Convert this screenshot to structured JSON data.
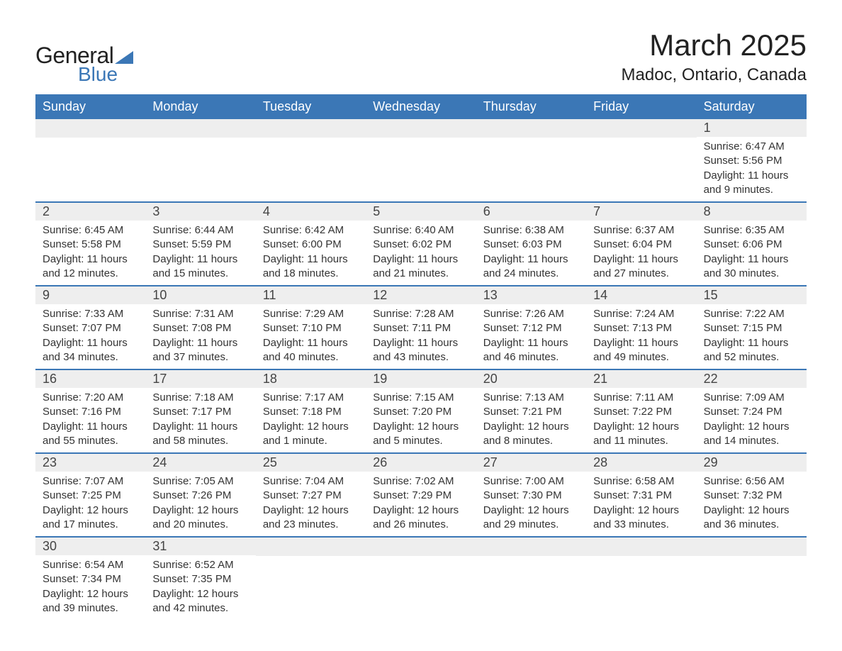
{
  "logo": {
    "text_general": "General",
    "text_blue": "Blue"
  },
  "title": {
    "month": "March 2025",
    "location": "Madoc, Ontario, Canada"
  },
  "colors": {
    "header_bg": "#3b77b6",
    "header_text": "#ffffff",
    "day_number_bg": "#eeeeee",
    "text": "#333333",
    "border": "#3b77b6"
  },
  "weekdays": [
    "Sunday",
    "Monday",
    "Tuesday",
    "Wednesday",
    "Thursday",
    "Friday",
    "Saturday"
  ],
  "weeks": [
    [
      {
        "day": "",
        "sunrise": "",
        "sunset": "",
        "daylight": ""
      },
      {
        "day": "",
        "sunrise": "",
        "sunset": "",
        "daylight": ""
      },
      {
        "day": "",
        "sunrise": "",
        "sunset": "",
        "daylight": ""
      },
      {
        "day": "",
        "sunrise": "",
        "sunset": "",
        "daylight": ""
      },
      {
        "day": "",
        "sunrise": "",
        "sunset": "",
        "daylight": ""
      },
      {
        "day": "",
        "sunrise": "",
        "sunset": "",
        "daylight": ""
      },
      {
        "day": "1",
        "sunrise": "Sunrise: 6:47 AM",
        "sunset": "Sunset: 5:56 PM",
        "daylight": "Daylight: 11 hours and 9 minutes."
      }
    ],
    [
      {
        "day": "2",
        "sunrise": "Sunrise: 6:45 AM",
        "sunset": "Sunset: 5:58 PM",
        "daylight": "Daylight: 11 hours and 12 minutes."
      },
      {
        "day": "3",
        "sunrise": "Sunrise: 6:44 AM",
        "sunset": "Sunset: 5:59 PM",
        "daylight": "Daylight: 11 hours and 15 minutes."
      },
      {
        "day": "4",
        "sunrise": "Sunrise: 6:42 AM",
        "sunset": "Sunset: 6:00 PM",
        "daylight": "Daylight: 11 hours and 18 minutes."
      },
      {
        "day": "5",
        "sunrise": "Sunrise: 6:40 AM",
        "sunset": "Sunset: 6:02 PM",
        "daylight": "Daylight: 11 hours and 21 minutes."
      },
      {
        "day": "6",
        "sunrise": "Sunrise: 6:38 AM",
        "sunset": "Sunset: 6:03 PM",
        "daylight": "Daylight: 11 hours and 24 minutes."
      },
      {
        "day": "7",
        "sunrise": "Sunrise: 6:37 AM",
        "sunset": "Sunset: 6:04 PM",
        "daylight": "Daylight: 11 hours and 27 minutes."
      },
      {
        "day": "8",
        "sunrise": "Sunrise: 6:35 AM",
        "sunset": "Sunset: 6:06 PM",
        "daylight": "Daylight: 11 hours and 30 minutes."
      }
    ],
    [
      {
        "day": "9",
        "sunrise": "Sunrise: 7:33 AM",
        "sunset": "Sunset: 7:07 PM",
        "daylight": "Daylight: 11 hours and 34 minutes."
      },
      {
        "day": "10",
        "sunrise": "Sunrise: 7:31 AM",
        "sunset": "Sunset: 7:08 PM",
        "daylight": "Daylight: 11 hours and 37 minutes."
      },
      {
        "day": "11",
        "sunrise": "Sunrise: 7:29 AM",
        "sunset": "Sunset: 7:10 PM",
        "daylight": "Daylight: 11 hours and 40 minutes."
      },
      {
        "day": "12",
        "sunrise": "Sunrise: 7:28 AM",
        "sunset": "Sunset: 7:11 PM",
        "daylight": "Daylight: 11 hours and 43 minutes."
      },
      {
        "day": "13",
        "sunrise": "Sunrise: 7:26 AM",
        "sunset": "Sunset: 7:12 PM",
        "daylight": "Daylight: 11 hours and 46 minutes."
      },
      {
        "day": "14",
        "sunrise": "Sunrise: 7:24 AM",
        "sunset": "Sunset: 7:13 PM",
        "daylight": "Daylight: 11 hours and 49 minutes."
      },
      {
        "day": "15",
        "sunrise": "Sunrise: 7:22 AM",
        "sunset": "Sunset: 7:15 PM",
        "daylight": "Daylight: 11 hours and 52 minutes."
      }
    ],
    [
      {
        "day": "16",
        "sunrise": "Sunrise: 7:20 AM",
        "sunset": "Sunset: 7:16 PM",
        "daylight": "Daylight: 11 hours and 55 minutes."
      },
      {
        "day": "17",
        "sunrise": "Sunrise: 7:18 AM",
        "sunset": "Sunset: 7:17 PM",
        "daylight": "Daylight: 11 hours and 58 minutes."
      },
      {
        "day": "18",
        "sunrise": "Sunrise: 7:17 AM",
        "sunset": "Sunset: 7:18 PM",
        "daylight": "Daylight: 12 hours and 1 minute."
      },
      {
        "day": "19",
        "sunrise": "Sunrise: 7:15 AM",
        "sunset": "Sunset: 7:20 PM",
        "daylight": "Daylight: 12 hours and 5 minutes."
      },
      {
        "day": "20",
        "sunrise": "Sunrise: 7:13 AM",
        "sunset": "Sunset: 7:21 PM",
        "daylight": "Daylight: 12 hours and 8 minutes."
      },
      {
        "day": "21",
        "sunrise": "Sunrise: 7:11 AM",
        "sunset": "Sunset: 7:22 PM",
        "daylight": "Daylight: 12 hours and 11 minutes."
      },
      {
        "day": "22",
        "sunrise": "Sunrise: 7:09 AM",
        "sunset": "Sunset: 7:24 PM",
        "daylight": "Daylight: 12 hours and 14 minutes."
      }
    ],
    [
      {
        "day": "23",
        "sunrise": "Sunrise: 7:07 AM",
        "sunset": "Sunset: 7:25 PM",
        "daylight": "Daylight: 12 hours and 17 minutes."
      },
      {
        "day": "24",
        "sunrise": "Sunrise: 7:05 AM",
        "sunset": "Sunset: 7:26 PM",
        "daylight": "Daylight: 12 hours and 20 minutes."
      },
      {
        "day": "25",
        "sunrise": "Sunrise: 7:04 AM",
        "sunset": "Sunset: 7:27 PM",
        "daylight": "Daylight: 12 hours and 23 minutes."
      },
      {
        "day": "26",
        "sunrise": "Sunrise: 7:02 AM",
        "sunset": "Sunset: 7:29 PM",
        "daylight": "Daylight: 12 hours and 26 minutes."
      },
      {
        "day": "27",
        "sunrise": "Sunrise: 7:00 AM",
        "sunset": "Sunset: 7:30 PM",
        "daylight": "Daylight: 12 hours and 29 minutes."
      },
      {
        "day": "28",
        "sunrise": "Sunrise: 6:58 AM",
        "sunset": "Sunset: 7:31 PM",
        "daylight": "Daylight: 12 hours and 33 minutes."
      },
      {
        "day": "29",
        "sunrise": "Sunrise: 6:56 AM",
        "sunset": "Sunset: 7:32 PM",
        "daylight": "Daylight: 12 hours and 36 minutes."
      }
    ],
    [
      {
        "day": "30",
        "sunrise": "Sunrise: 6:54 AM",
        "sunset": "Sunset: 7:34 PM",
        "daylight": "Daylight: 12 hours and 39 minutes."
      },
      {
        "day": "31",
        "sunrise": "Sunrise: 6:52 AM",
        "sunset": "Sunset: 7:35 PM",
        "daylight": "Daylight: 12 hours and 42 minutes."
      },
      {
        "day": "",
        "sunrise": "",
        "sunset": "",
        "daylight": ""
      },
      {
        "day": "",
        "sunrise": "",
        "sunset": "",
        "daylight": ""
      },
      {
        "day": "",
        "sunrise": "",
        "sunset": "",
        "daylight": ""
      },
      {
        "day": "",
        "sunrise": "",
        "sunset": "",
        "daylight": ""
      },
      {
        "day": "",
        "sunrise": "",
        "sunset": "",
        "daylight": ""
      }
    ]
  ]
}
